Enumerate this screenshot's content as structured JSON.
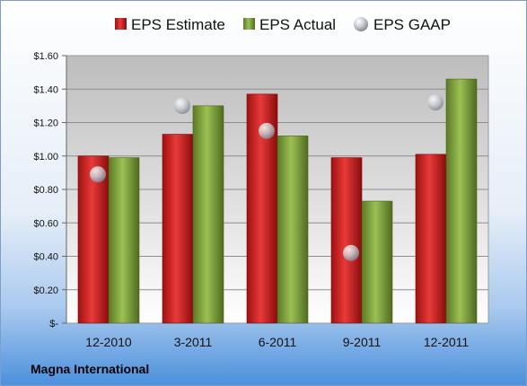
{
  "chart_data": {
    "type": "bar",
    "categories": [
      "12-2010",
      "3-2011",
      "6-2011",
      "9-2011",
      "12-2011"
    ],
    "series": [
      {
        "name": "EPS Estimate",
        "type": "bar",
        "color": "#cc1f1f",
        "values": [
          1.0,
          1.13,
          1.37,
          0.99,
          1.01
        ]
      },
      {
        "name": "EPS Actual",
        "type": "bar",
        "color": "#7fa03a",
        "values": [
          0.99,
          1.3,
          1.12,
          0.73,
          1.46
        ]
      },
      {
        "name": "EPS GAAP",
        "type": "scatter",
        "color": "#b8bcc4",
        "values": [
          0.89,
          1.3,
          1.15,
          0.42,
          1.32
        ]
      }
    ],
    "yticks": [
      "$-",
      "$0.20",
      "$0.40",
      "$0.60",
      "$0.80",
      "$1.00",
      "$1.20",
      "$1.40",
      "$1.60"
    ],
    "ylim": [
      0,
      1.6
    ],
    "grid": true,
    "legend_position": "top"
  },
  "footer": {
    "company": "Magna International"
  }
}
